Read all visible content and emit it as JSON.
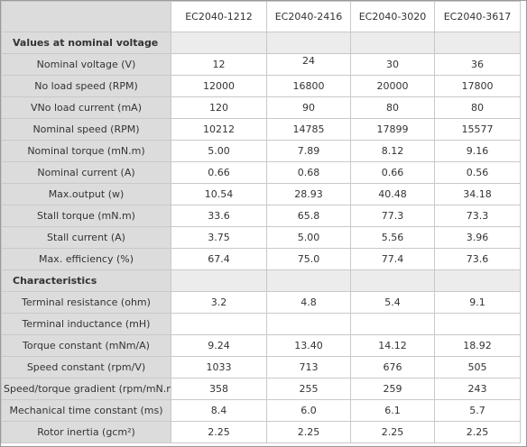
{
  "columns": [
    "EC2040-1212",
    "EC2040-2416",
    "EC2040-3020",
    "EC2040-3617"
  ],
  "sections": [
    {
      "title": "Values at nominal voltage",
      "rows": [
        {
          "label": "Nominal voltage (V)",
          "values": [
            "12",
            "24",
            "30",
            "36"
          ]
        },
        {
          "label": "No load speed (RPM)",
          "values": [
            "12000",
            "16800",
            "20000",
            "17800"
          ]
        },
        {
          "label": "VNo load current (mA)",
          "values": [
            "120",
            "90",
            "80",
            "80"
          ]
        },
        {
          "label": "Nominal speed (RPM)",
          "values": [
            "10212",
            "14785",
            "17899",
            "15577"
          ]
        },
        {
          "label": "Nominal torque (mN.m)",
          "values": [
            "5.00",
            "7.89",
            "8.12",
            "9.16"
          ]
        },
        {
          "label": "Nominal current (A)",
          "values": [
            "0.66",
            "0.68",
            "0.66",
            "0.56"
          ]
        },
        {
          "label": "Max.output (w)",
          "values": [
            "10.54",
            "28.93",
            "40.48",
            "34.18"
          ]
        },
        {
          "label": "Stall torque (mN.m)",
          "values": [
            "33.6",
            "65.8",
            "77.3",
            "73.3"
          ]
        },
        {
          "label": "Stall current (A)",
          "values": [
            "3.75",
            "5.00",
            "5.56",
            "3.96"
          ]
        },
        {
          "label": "Max. efficiency (%)",
          "values": [
            "67.4",
            "75.0",
            "77.4",
            "73.6"
          ]
        }
      ]
    },
    {
      "title": "Characteristics",
      "rows": [
        {
          "label": "Terminal resistance (ohm)",
          "values": [
            "3.2",
            "4.8",
            "5.4",
            "9.1"
          ]
        },
        {
          "label": "Terminal inductance (mH)",
          "values": [
            "",
            "",
            "",
            ""
          ]
        },
        {
          "label": "Torque  constant (mNm/A)",
          "values": [
            "9.24",
            "13.40",
            "14.12",
            "18.92"
          ]
        },
        {
          "label": "Speed constant (rpm/V)",
          "values": [
            "1033",
            "713",
            "676",
            "505"
          ]
        },
        {
          "label": "Speed/torque gradient (rpm/mN.m)",
          "values": [
            "358",
            "255",
            "259",
            "243"
          ]
        },
        {
          "label": "Mechanical time constant (ms)",
          "values": [
            "8.4",
            "6.0",
            "6.1",
            "5.7"
          ]
        },
        {
          "label": "Rotor inertia (gcm²)",
          "values": [
            "2.25",
            "2.25",
            "2.25",
            "2.25"
          ]
        }
      ]
    }
  ]
}
